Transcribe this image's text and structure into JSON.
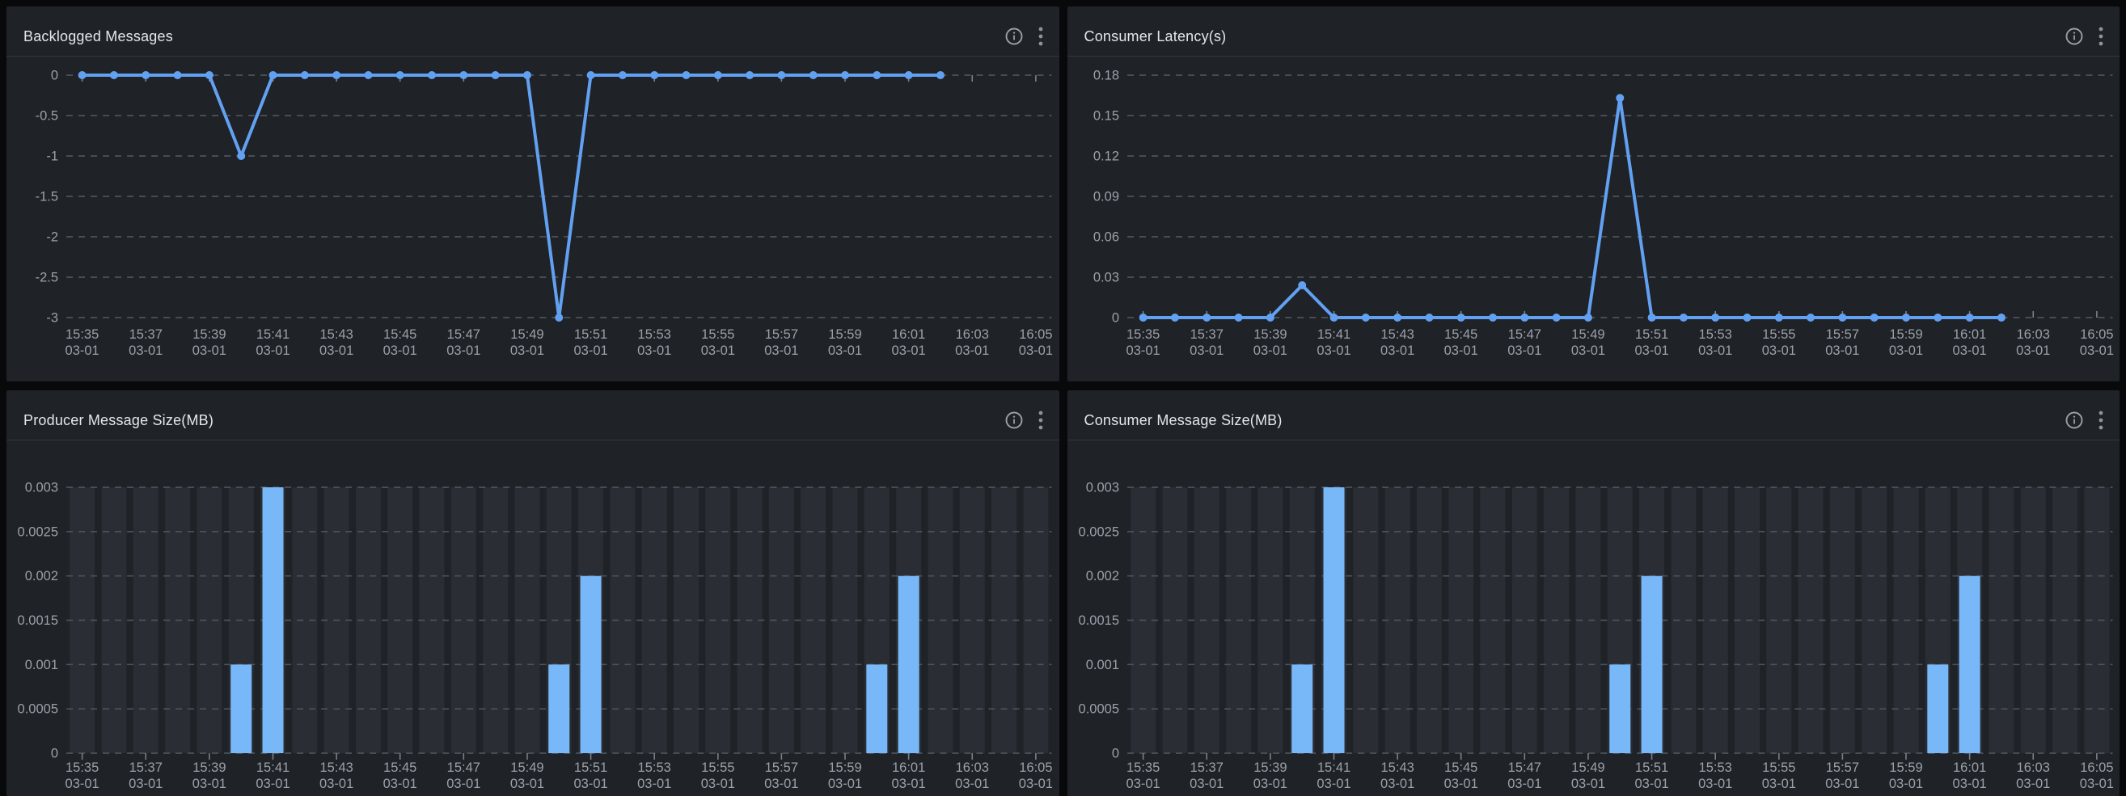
{
  "theme": {
    "page_bg": "#08090b",
    "panel_bg": "#1f2227",
    "title_color": "#e4e7ea",
    "axis_label_color": "#9aa1a9",
    "grid_line_color": "#4e525a",
    "tick_color": "#7b8087",
    "stripe_color": "#2a2d33",
    "line_color": "#62a1f1",
    "bar_color": "#79b8f8",
    "icon_color": "#9aa0a6",
    "divider_color": "#34383e"
  },
  "header_icons": [
    {
      "name": "info-icon",
      "glyph": "ⓘ"
    },
    {
      "name": "kebab-menu-icon",
      "glyph": "⋮"
    }
  ],
  "x_axis": {
    "date_label": "03-01",
    "tick_every": 2,
    "minutes": [
      "15:35",
      "15:36",
      "15:37",
      "15:38",
      "15:39",
      "15:40",
      "15:41",
      "15:42",
      "15:43",
      "15:44",
      "15:45",
      "15:46",
      "15:47",
      "15:48",
      "15:49",
      "15:50",
      "15:51",
      "15:52",
      "15:53",
      "15:54",
      "15:55",
      "15:56",
      "15:57",
      "15:58",
      "15:59",
      "16:00",
      "16:01",
      "16:02",
      "16:03",
      "16:04",
      "16:05"
    ]
  },
  "panels": [
    {
      "title": "Backlogged Messages",
      "chart_data": {
        "type": "line",
        "title": "Backlogged Messages",
        "categories": [
          "15:35",
          "15:36",
          "15:37",
          "15:38",
          "15:39",
          "15:40",
          "15:41",
          "15:42",
          "15:43",
          "15:44",
          "15:45",
          "15:46",
          "15:47",
          "15:48",
          "15:49",
          "15:50",
          "15:51",
          "15:52",
          "15:53",
          "15:54",
          "15:55",
          "15:56",
          "15:57",
          "15:58",
          "15:59",
          "16:00",
          "16:01",
          "16:02",
          "16:03",
          "16:04",
          "16:05"
        ],
        "values": [
          0,
          0,
          0,
          0,
          0,
          -1,
          0,
          0,
          0,
          0,
          0,
          0,
          0,
          0,
          0,
          -3,
          0,
          0,
          0,
          0,
          0,
          0,
          0,
          0,
          0,
          0,
          0,
          0,
          null,
          null,
          null
        ],
        "ylim": [
          -3,
          0
        ],
        "ytick_labels": [
          "0",
          "-0.5",
          "-1",
          "-1.5",
          "-2",
          "-2.5",
          "-3"
        ],
        "zero_axis": "top",
        "grid": "dashed",
        "legend": "none",
        "xlabel": "",
        "ylabel": ""
      }
    },
    {
      "title": "Consumer Latency(s)",
      "chart_data": {
        "type": "line",
        "title": "Consumer Latency(s)",
        "categories": [
          "15:35",
          "15:36",
          "15:37",
          "15:38",
          "15:39",
          "15:40",
          "15:41",
          "15:42",
          "15:43",
          "15:44",
          "15:45",
          "15:46",
          "15:47",
          "15:48",
          "15:49",
          "15:50",
          "15:51",
          "15:52",
          "15:53",
          "15:54",
          "15:55",
          "15:56",
          "15:57",
          "15:58",
          "15:59",
          "16:00",
          "16:01",
          "16:02",
          "16:03",
          "16:04",
          "16:05"
        ],
        "values": [
          0,
          0,
          0,
          0,
          0,
          0.024,
          0,
          0,
          0,
          0,
          0,
          0,
          0,
          0,
          0,
          0.163,
          0,
          0,
          0,
          0,
          0,
          0,
          0,
          0,
          0,
          0,
          0,
          0,
          null,
          null,
          null
        ],
        "ylim": [
          0,
          0.18
        ],
        "ytick_labels": [
          "0.18",
          "0.15",
          "0.12",
          "0.09",
          "0.06",
          "0.03",
          "0"
        ],
        "zero_axis": "bottom",
        "grid": "dashed",
        "legend": "none",
        "xlabel": "",
        "ylabel": ""
      }
    },
    {
      "title": "Producer Message Size(MB)",
      "chart_data": {
        "type": "bar",
        "title": "Producer Message Size(MB)",
        "categories": [
          "15:35",
          "15:36",
          "15:37",
          "15:38",
          "15:39",
          "15:40",
          "15:41",
          "15:42",
          "15:43",
          "15:44",
          "15:45",
          "15:46",
          "15:47",
          "15:48",
          "15:49",
          "15:50",
          "15:51",
          "15:52",
          "15:53",
          "15:54",
          "15:55",
          "15:56",
          "15:57",
          "15:58",
          "15:59",
          "16:00",
          "16:01",
          "16:02",
          "16:03",
          "16:04",
          "16:05"
        ],
        "values": [
          0,
          0,
          0,
          0,
          0,
          0.001,
          0.003,
          0,
          0,
          0,
          0,
          0,
          0,
          0,
          0,
          0.001,
          0.002,
          0,
          0,
          0,
          0,
          0,
          0,
          0,
          0,
          0.001,
          0.002,
          0,
          0,
          0,
          0
        ],
        "ylim": [
          0,
          0.003
        ],
        "ytick_labels": [
          "0.003",
          "0.0025",
          "0.002",
          "0.0015",
          "0.001",
          "0.0005",
          "0"
        ],
        "zero_axis": "bottom",
        "grid": "dashed",
        "background_stripes": true,
        "legend": "none",
        "xlabel": "",
        "ylabel": ""
      }
    },
    {
      "title": "Consumer Message Size(MB)",
      "chart_data": {
        "type": "bar",
        "title": "Consumer Message Size(MB)",
        "categories": [
          "15:35",
          "15:36",
          "15:37",
          "15:38",
          "15:39",
          "15:40",
          "15:41",
          "15:42",
          "15:43",
          "15:44",
          "15:45",
          "15:46",
          "15:47",
          "15:48",
          "15:49",
          "15:50",
          "15:51",
          "15:52",
          "15:53",
          "15:54",
          "15:55",
          "15:56",
          "15:57",
          "15:58",
          "15:59",
          "16:00",
          "16:01",
          "16:02",
          "16:03",
          "16:04",
          "16:05"
        ],
        "values": [
          0,
          0,
          0,
          0,
          0,
          0.001,
          0.003,
          0,
          0,
          0,
          0,
          0,
          0,
          0,
          0,
          0.001,
          0.002,
          0,
          0,
          0,
          0,
          0,
          0,
          0,
          0,
          0.001,
          0.002,
          0,
          0,
          0,
          0
        ],
        "ylim": [
          0,
          0.003
        ],
        "ytick_labels": [
          "0.003",
          "0.0025",
          "0.002",
          "0.0015",
          "0.001",
          "0.0005",
          "0"
        ],
        "zero_axis": "bottom",
        "grid": "dashed",
        "background_stripes": true,
        "legend": "none",
        "xlabel": "",
        "ylabel": ""
      }
    }
  ]
}
